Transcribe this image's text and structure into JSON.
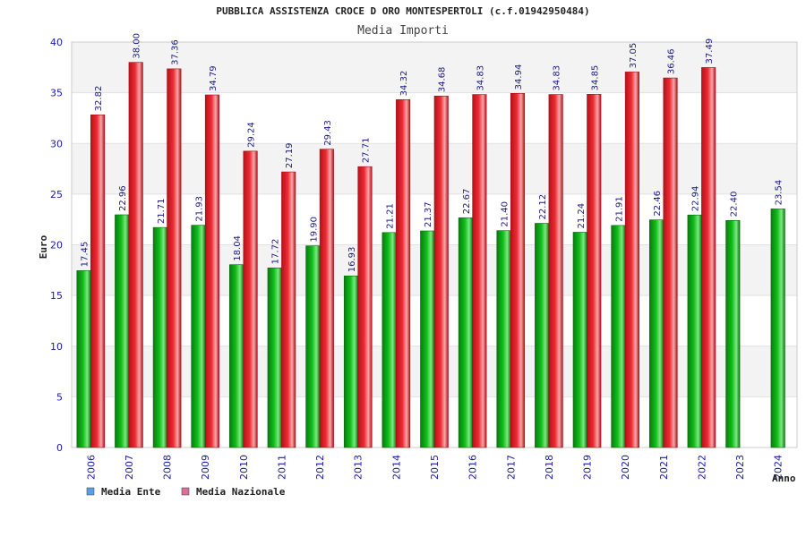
{
  "chart_data": {
    "type": "bar",
    "title": "PUBBLICA ASSISTENZA CROCE D ORO MONTESPERTOLI (c.f.01942950484)",
    "subtitle": "Media Importi",
    "xlabel": "Anno",
    "ylabel": "Euro",
    "ylim": [
      0,
      40
    ],
    "yticks": [
      0,
      5,
      10,
      15,
      20,
      25,
      30,
      35,
      40
    ],
    "grid": true,
    "legend_position": "bottom-left",
    "categories": [
      "2006",
      "2007",
      "2008",
      "2009",
      "2010",
      "2011",
      "2012",
      "2013",
      "2014",
      "2015",
      "2016",
      "2017",
      "2018",
      "2019",
      "2020",
      "2021",
      "2022",
      "2023",
      "2024"
    ],
    "series": [
      {
        "name": "Media Ente",
        "values": [
          17.45,
          22.96,
          21.71,
          21.93,
          18.04,
          17.72,
          19.9,
          16.93,
          21.21,
          21.37,
          22.67,
          21.4,
          22.12,
          21.24,
          21.91,
          22.46,
          22.94,
          22.4,
          23.54
        ],
        "labels": [
          "17.45",
          "22.96",
          "21.71",
          "21.93",
          "18.04",
          "17.72",
          "19.90",
          "16.93",
          "21.21",
          "21.37",
          "22.67",
          "21.40",
          "22.12",
          "21.24",
          "21.91",
          "22.46",
          "22.94",
          "22.40",
          "23.54"
        ],
        "bar_color": "#0fbf1a",
        "legend_color": "#5c9ee6"
      },
      {
        "name": "Media Nazionale",
        "values": [
          32.82,
          38.0,
          37.36,
          34.79,
          29.24,
          27.19,
          29.43,
          27.71,
          34.32,
          34.68,
          34.83,
          34.94,
          34.83,
          34.85,
          37.05,
          36.46,
          37.49,
          null,
          null
        ],
        "labels": [
          "32.82",
          "38.00",
          "37.36",
          "34.79",
          "29.24",
          "27.19",
          "29.43",
          "27.71",
          "34.32",
          "34.68",
          "34.83",
          "34.94",
          "34.83",
          "34.85",
          "37.05",
          "36.46",
          "37.49",
          "",
          ""
        ],
        "bar_color": "#ee2b33",
        "legend_color": "#d8709b"
      }
    ]
  }
}
